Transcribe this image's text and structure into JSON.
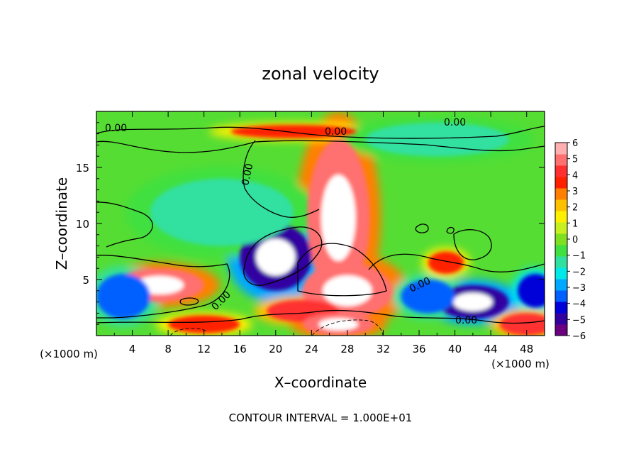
{
  "chart_data": {
    "type": "heatmap",
    "title": "zonal velocity",
    "xlabel": "X–coordinate",
    "ylabel": "Z–coordinate",
    "x_unit_left": "(×1000 m)",
    "x_unit_right": "(×1000 m)",
    "footer": "CONTOUR INTERVAL = 1.000E+01",
    "xlim": [
      0,
      50
    ],
    "ylim": [
      0,
      20
    ],
    "x_ticks": [
      "4",
      "8",
      "12",
      "16",
      "20",
      "24",
      "28",
      "32",
      "36",
      "40",
      "44",
      "48"
    ],
    "y_ticks": [
      "5",
      "10",
      "15"
    ],
    "colorbar": {
      "range": [
        -6,
        6
      ],
      "tick_labels": [
        "6",
        "5",
        "4",
        "3",
        "2",
        "1",
        "0",
        "−1",
        "−2",
        "−3",
        "−4",
        "−5",
        "−6"
      ],
      "colors": [
        "#6a0080",
        "#3300a0",
        "#0000d8",
        "#0060ff",
        "#00a8ff",
        "#00e8e8",
        "#30e0a0",
        "#40e040",
        "#7ee020",
        "#c8f020",
        "#fff000",
        "#ffc000",
        "#ff8000",
        "#ff2000",
        "#ff3030",
        "#ff7070",
        "#ffb0b0"
      ]
    },
    "contour_labels": [
      "0.00",
      "0.00",
      "0.00",
      "0.00",
      "0.00",
      "0.00",
      "0.00"
    ],
    "field_features": [
      {
        "kind": "positive_max",
        "x": 27,
        "z": 10.5,
        "value": 6,
        "rx": 3.5,
        "rz": 7
      },
      {
        "kind": "positive",
        "x": 28,
        "z": 4,
        "value": 6,
        "rx": 5,
        "rz": 2.5
      },
      {
        "kind": "positive",
        "x": 22,
        "z": 18.2,
        "value": 4,
        "rx": 7,
        "rz": 0.6
      },
      {
        "kind": "negative_min",
        "x": 20,
        "z": 7,
        "value": -6,
        "rx": 4,
        "rz": 3
      },
      {
        "kind": "positive",
        "x": 7,
        "z": 4.5,
        "value": 6,
        "rx": 5,
        "rz": 1.5
      },
      {
        "kind": "negative",
        "x": 42,
        "z": 3,
        "value": -6,
        "rx": 4,
        "rz": 1.5
      },
      {
        "kind": "negative",
        "x": 37,
        "z": 3.5,
        "value": -4,
        "rx": 3,
        "rz": 1.5
      },
      {
        "kind": "negative",
        "x": 3,
        "z": 3.5,
        "value": -4,
        "rx": 3,
        "rz": 2
      },
      {
        "kind": "positive",
        "x": 23,
        "z": 2.2,
        "value": 5,
        "rx": 4,
        "rz": 1
      },
      {
        "kind": "positive",
        "x": 39,
        "z": 6.5,
        "value": 4,
        "rx": 2,
        "rz": 1
      },
      {
        "kind": "negative",
        "x": 38,
        "z": 17.5,
        "value": -2,
        "rx": 8,
        "rz": 1.5
      },
      {
        "kind": "negative",
        "x": 14,
        "z": 11,
        "value": -1.5,
        "rx": 8,
        "rz": 3
      },
      {
        "kind": "positive",
        "x": 27,
        "z": 1,
        "value": 6,
        "rx": 4,
        "rz": 1
      },
      {
        "kind": "negative",
        "x": 49,
        "z": 4,
        "value": -5,
        "rx": 2,
        "rz": 1.5
      },
      {
        "kind": "positive",
        "x": 48,
        "z": 1,
        "value": 5,
        "rx": 3,
        "rz": 1
      },
      {
        "kind": "positive",
        "x": 12,
        "z": 1,
        "value": 4,
        "rx": 4,
        "rz": 0.8
      }
    ]
  }
}
